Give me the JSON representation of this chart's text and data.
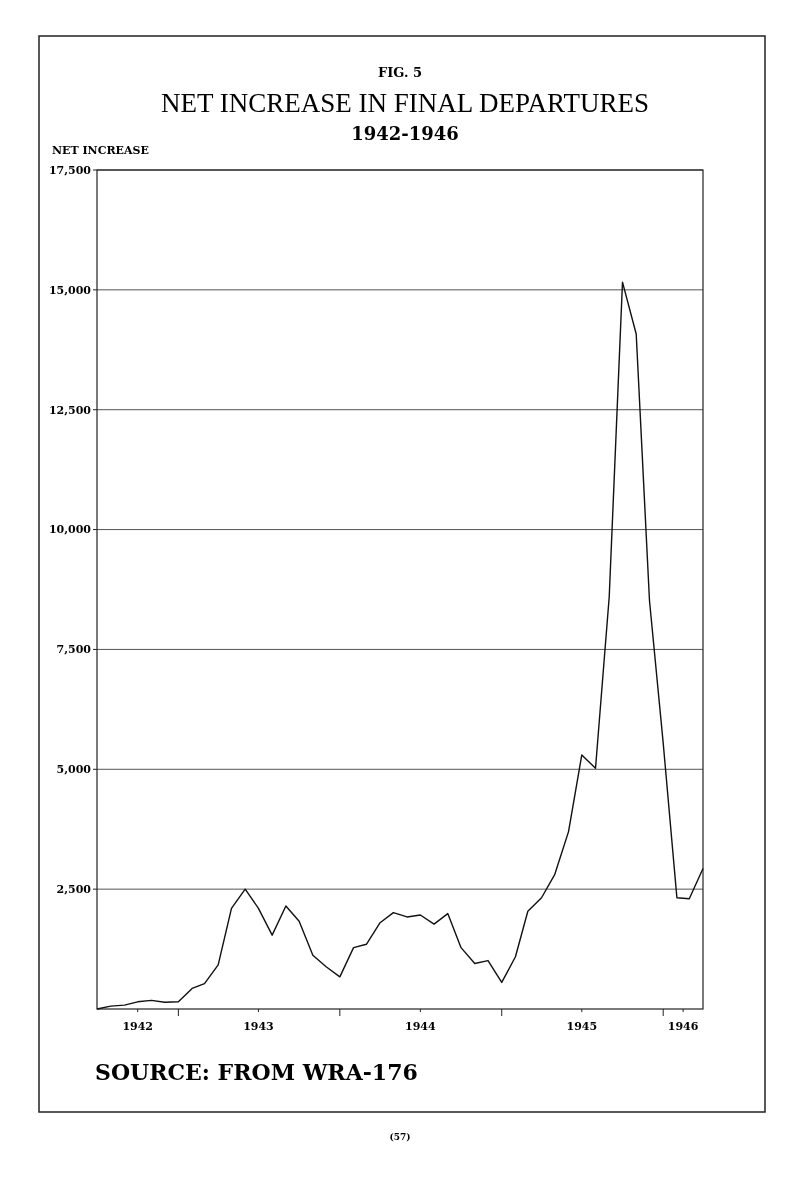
{
  "chart_data": {
    "type": "line",
    "title": "NET INCREASE IN FINAL DEPARTURES",
    "subtitle": "1942-1946",
    "ylabel": "NET INCREASE",
    "annotations": [
      "FIG. 5",
      "SOURCE: FROM WRA-176",
      "(57)"
    ],
    "x": [
      "1942-07",
      "1942-08",
      "1942-09",
      "1942-10",
      "1942-11",
      "1942-12",
      "1943-01",
      "1943-02",
      "1943-03",
      "1943-04",
      "1943-05",
      "1943-06",
      "1943-07",
      "1943-08",
      "1943-09",
      "1943-10",
      "1943-11",
      "1943-12",
      "1944-01",
      "1944-02",
      "1944-03",
      "1944-04",
      "1944-05",
      "1944-06",
      "1944-07",
      "1944-08",
      "1944-09",
      "1944-10",
      "1944-11",
      "1944-12",
      "1945-01",
      "1945-02",
      "1945-03",
      "1945-04",
      "1945-05",
      "1945-06",
      "1945-07",
      "1945-08",
      "1945-09",
      "1945-10",
      "1945-11",
      "1945-12",
      "1946-01",
      "1946-02",
      "1946-03",
      "1946-04"
    ],
    "series": [
      {
        "color": "#111111",
        "values": [
          0,
          60,
          80,
          150,
          180,
          140,
          150,
          430,
          530,
          920,
          2100,
          2500,
          2100,
          1540,
          2150,
          1830,
          1120,
          880,
          670,
          1280,
          1350,
          1800,
          2010,
          1920,
          1960,
          1770,
          1990,
          1280,
          950,
          1010,
          555,
          1090,
          2040,
          2320,
          2810,
          3700,
          5300,
          5020,
          8600,
          15160,
          14080,
          8520,
          5550,
          2320,
          2300,
          2930
        ]
      }
    ],
    "xlim": [
      "1942-07",
      "1946-04"
    ],
    "xticks": [
      {
        "value": "1942-10",
        "label": "1942"
      },
      {
        "value": "1943",
        "label": null
      },
      {
        "value": "1943-07",
        "label": "1943"
      },
      {
        "value": "1944",
        "label": null
      },
      {
        "value": "1944-07",
        "label": "1944"
      },
      {
        "value": "1945",
        "label": null
      },
      {
        "value": "1945-07",
        "label": "1945"
      },
      {
        "value": "1946",
        "label": null
      },
      {
        "value": "1946-02-15",
        "label": "1946"
      }
    ],
    "ylim": [
      0,
      17500
    ],
    "yticks": [
      {
        "value": 2500,
        "label": "2,500"
      },
      {
        "value": 5000,
        "label": "5,000"
      },
      {
        "value": 7500,
        "label": "7,500"
      },
      {
        "value": 10000,
        "label": "10,000"
      },
      {
        "value": 12500,
        "label": "12,500"
      },
      {
        "value": 15000,
        "label": "15,000"
      },
      {
        "value": 17500,
        "label": "17,500"
      }
    ],
    "grid": "y",
    "marker": "none",
    "line_style": "solid"
  }
}
